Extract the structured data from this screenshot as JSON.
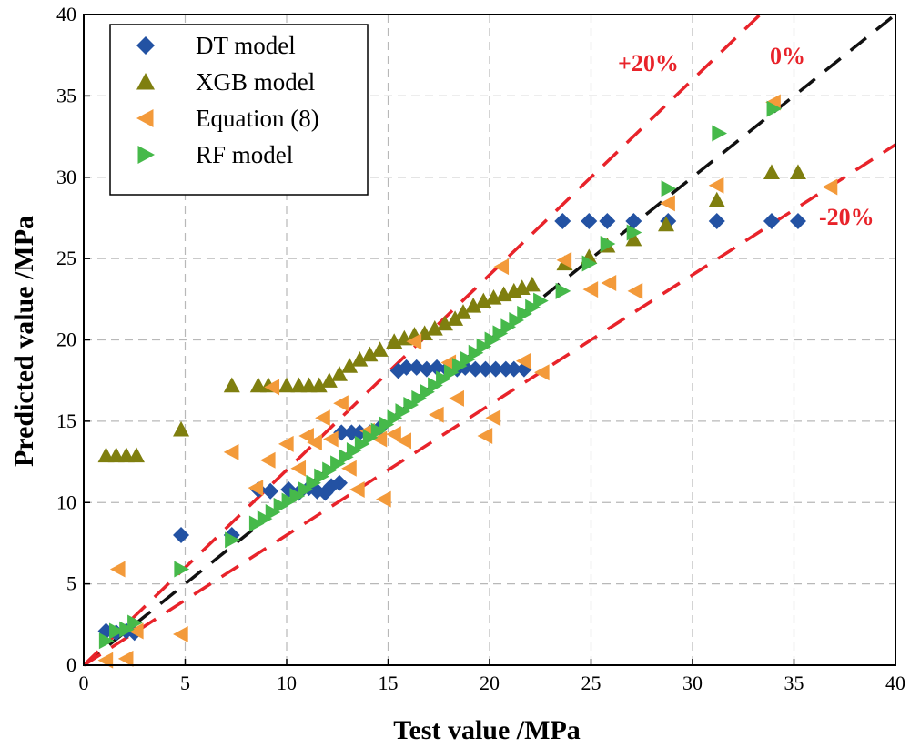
{
  "chart_data": {
    "type": "scatter",
    "xlabel": "Test value /MPa",
    "ylabel": "Predicted value /MPa",
    "xlim": [
      0,
      40
    ],
    "ylim": [
      0,
      40
    ],
    "xticks": [
      0,
      5,
      10,
      15,
      20,
      25,
      30,
      35,
      40
    ],
    "yticks": [
      0,
      5,
      10,
      15,
      20,
      25,
      30,
      35,
      40
    ],
    "grid": true,
    "legend_position": "top-left",
    "colors": {
      "dt": "#2352A3",
      "xgb": "#7F7F0F",
      "eq": "#F39A3A",
      "rf": "#46B94A",
      "ref_zero": "#111111",
      "ref_band": "#E8232A",
      "grid": "#b8b8b8"
    },
    "reference_lines": [
      {
        "label": "0%",
        "slope": 1.0,
        "color": "#111111"
      },
      {
        "label": "+20%",
        "slope": 1.2,
        "color": "#E8232A"
      },
      {
        "label": "-20%",
        "slope": 0.8,
        "color": "#E8232A"
      }
    ],
    "series": [
      {
        "name": "DT model",
        "marker": "diamond",
        "color": "#2352A3",
        "points": [
          [
            1.1,
            2.1
          ],
          [
            1.6,
            2.0
          ],
          [
            2.1,
            2.1
          ],
          [
            2.5,
            2.0
          ],
          [
            4.8,
            8.0
          ],
          [
            7.3,
            8.0
          ],
          [
            8.6,
            10.8
          ],
          [
            9.2,
            10.7
          ],
          [
            10.1,
            10.8
          ],
          [
            10.6,
            10.6
          ],
          [
            11.1,
            10.9
          ],
          [
            11.5,
            10.7
          ],
          [
            11.9,
            10.6
          ],
          [
            12.2,
            11.0
          ],
          [
            12.6,
            11.2
          ],
          [
            12.7,
            14.3
          ],
          [
            13.2,
            14.3
          ],
          [
            13.6,
            14.3
          ],
          [
            14.1,
            14.3
          ],
          [
            14.6,
            14.6
          ],
          [
            15.5,
            18.1
          ],
          [
            15.9,
            18.3
          ],
          [
            16.4,
            18.3
          ],
          [
            16.9,
            18.2
          ],
          [
            17.4,
            18.3
          ],
          [
            17.9,
            18.2
          ],
          [
            18.4,
            18.2
          ],
          [
            18.8,
            18.3
          ],
          [
            19.3,
            18.2
          ],
          [
            19.8,
            18.2
          ],
          [
            20.3,
            18.2
          ],
          [
            20.8,
            18.2
          ],
          [
            21.2,
            18.2
          ],
          [
            21.7,
            18.2
          ],
          [
            23.6,
            27.3
          ],
          [
            24.9,
            27.3
          ],
          [
            25.8,
            27.3
          ],
          [
            27.1,
            27.3
          ],
          [
            28.8,
            27.3
          ],
          [
            31.2,
            27.3
          ],
          [
            33.9,
            27.3
          ],
          [
            35.2,
            27.3
          ]
        ]
      },
      {
        "name": "XGB model",
        "marker": "triangle-up",
        "color": "#7F7F0F",
        "points": [
          [
            1.1,
            12.9
          ],
          [
            1.6,
            12.9
          ],
          [
            2.1,
            12.9
          ],
          [
            2.6,
            12.9
          ],
          [
            4.8,
            14.5
          ],
          [
            7.3,
            17.2
          ],
          [
            8.6,
            17.2
          ],
          [
            9.1,
            17.2
          ],
          [
            10.0,
            17.2
          ],
          [
            10.6,
            17.2
          ],
          [
            11.1,
            17.2
          ],
          [
            11.6,
            17.2
          ],
          [
            12.1,
            17.5
          ],
          [
            12.6,
            17.9
          ],
          [
            13.1,
            18.4
          ],
          [
            13.6,
            18.8
          ],
          [
            14.1,
            19.1
          ],
          [
            14.6,
            19.4
          ],
          [
            15.3,
            19.9
          ],
          [
            15.8,
            20.1
          ],
          [
            16.3,
            20.3
          ],
          [
            16.8,
            20.4
          ],
          [
            17.3,
            20.7
          ],
          [
            17.8,
            21.0
          ],
          [
            18.3,
            21.3
          ],
          [
            18.7,
            21.7
          ],
          [
            19.2,
            22.1
          ],
          [
            19.7,
            22.4
          ],
          [
            20.2,
            22.6
          ],
          [
            20.7,
            22.8
          ],
          [
            21.2,
            23.0
          ],
          [
            21.6,
            23.2
          ],
          [
            22.1,
            23.4
          ],
          [
            23.7,
            24.7
          ],
          [
            24.9,
            25.1
          ],
          [
            25.8,
            25.8
          ],
          [
            27.1,
            26.2
          ],
          [
            28.7,
            27.1
          ],
          [
            31.2,
            28.6
          ],
          [
            33.9,
            30.3
          ],
          [
            35.2,
            30.3
          ]
        ]
      },
      {
        "name": "Equation (8)",
        "marker": "triangle-left",
        "color": "#F39A3A",
        "points": [
          [
            1.1,
            0.3
          ],
          [
            1.7,
            5.9
          ],
          [
            2.1,
            0.4
          ],
          [
            2.6,
            2.1
          ],
          [
            4.8,
            1.9
          ],
          [
            7.3,
            13.1
          ],
          [
            8.5,
            10.9
          ],
          [
            9.1,
            12.6
          ],
          [
            9.3,
            17.1
          ],
          [
            10.0,
            13.6
          ],
          [
            10.6,
            12.1
          ],
          [
            11.0,
            14.1
          ],
          [
            11.4,
            13.7
          ],
          [
            11.8,
            15.2
          ],
          [
            12.2,
            13.9
          ],
          [
            12.7,
            16.1
          ],
          [
            13.1,
            12.1
          ],
          [
            13.5,
            10.8
          ],
          [
            14.0,
            14.4
          ],
          [
            14.6,
            13.9
          ],
          [
            14.8,
            10.2
          ],
          [
            15.3,
            14.2
          ],
          [
            15.8,
            13.8
          ],
          [
            16.3,
            19.9
          ],
          [
            17.4,
            15.4
          ],
          [
            18.0,
            18.6
          ],
          [
            18.4,
            16.4
          ],
          [
            19.8,
            14.1
          ],
          [
            20.2,
            15.2
          ],
          [
            20.6,
            24.5
          ],
          [
            21.7,
            18.7
          ],
          [
            22.6,
            18.0
          ],
          [
            23.7,
            24.9
          ],
          [
            25.0,
            23.1
          ],
          [
            25.9,
            23.5
          ],
          [
            27.2,
            23.0
          ],
          [
            28.8,
            28.4
          ],
          [
            31.2,
            29.5
          ],
          [
            34.0,
            34.6
          ],
          [
            36.8,
            29.4
          ]
        ]
      },
      {
        "name": "RF model",
        "marker": "triangle-right",
        "color": "#46B94A",
        "points": [
          [
            1.1,
            1.5
          ],
          [
            1.6,
            2.1
          ],
          [
            2.1,
            2.2
          ],
          [
            2.5,
            2.6
          ],
          [
            4.8,
            5.9
          ],
          [
            7.3,
            7.7
          ],
          [
            8.5,
            8.7
          ],
          [
            8.9,
            9.0
          ],
          [
            9.3,
            9.4
          ],
          [
            9.7,
            9.8
          ],
          [
            10.1,
            10.1
          ],
          [
            10.5,
            10.4
          ],
          [
            10.9,
            10.8
          ],
          [
            11.3,
            11.2
          ],
          [
            11.7,
            11.6
          ],
          [
            12.1,
            12.0
          ],
          [
            12.5,
            12.4
          ],
          [
            12.9,
            12.8
          ],
          [
            13.3,
            13.2
          ],
          [
            13.7,
            13.6
          ],
          [
            14.1,
            14.0
          ],
          [
            14.5,
            14.4
          ],
          [
            14.9,
            14.8
          ],
          [
            15.3,
            15.2
          ],
          [
            15.7,
            15.6
          ],
          [
            16.1,
            16.0
          ],
          [
            16.5,
            16.4
          ],
          [
            16.9,
            16.8
          ],
          [
            17.3,
            17.2
          ],
          [
            17.7,
            17.6
          ],
          [
            18.1,
            18.0
          ],
          [
            18.5,
            18.4
          ],
          [
            18.9,
            18.8
          ],
          [
            19.3,
            19.2
          ],
          [
            19.7,
            19.6
          ],
          [
            20.1,
            20.0
          ],
          [
            20.5,
            20.4
          ],
          [
            20.9,
            20.8
          ],
          [
            21.3,
            21.2
          ],
          [
            21.7,
            21.6
          ],
          [
            22.1,
            22.0
          ],
          [
            22.5,
            22.4
          ],
          [
            23.6,
            23.0
          ],
          [
            24.9,
            24.7
          ],
          [
            25.8,
            25.9
          ],
          [
            27.1,
            26.6
          ],
          [
            28.8,
            29.3
          ],
          [
            31.3,
            32.7
          ],
          [
            34.0,
            34.2
          ]
        ]
      }
    ]
  }
}
